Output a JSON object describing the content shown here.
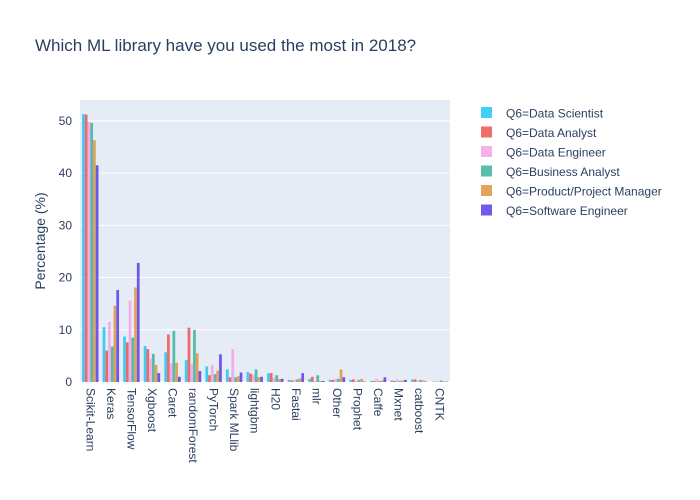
{
  "chart_data": {
    "type": "bar",
    "title": "Which ML library have you used the most in 2018?",
    "xlabel": "",
    "ylabel": "Percentage (%)",
    "ylim": [
      0,
      54
    ],
    "yticks": [
      0,
      10,
      20,
      30,
      40,
      50
    ],
    "grid": true,
    "legend_position": "right",
    "categories": [
      "Scikit-Learn",
      "Keras",
      "TensorFlow",
      "Xgboost",
      "Caret",
      "randomForest",
      "PyTorch",
      "Spark MLlib",
      "lightgbm",
      "H20",
      "Fastai",
      "mlr",
      "Other",
      "Prophet",
      "Caffe",
      "Mxnet",
      "catboost",
      "CNTK"
    ],
    "series": [
      {
        "name": "Q6=Data Scientist",
        "color": "#22c6f2",
        "values": [
          51.3,
          10.5,
          8.7,
          6.9,
          5.7,
          4.2,
          3.0,
          2.4,
          1.9,
          1.7,
          0.4,
          0.6,
          0.4,
          0.4,
          0.2,
          0.3,
          0.5,
          0.1
        ]
      },
      {
        "name": "Q6=Data Analyst",
        "color": "#ef5350",
        "values": [
          51.2,
          6.0,
          7.6,
          6.3,
          9.1,
          10.4,
          1.3,
          0.9,
          1.6,
          1.7,
          0.3,
          1.0,
          0.4,
          0.5,
          0.2,
          0.2,
          0.5,
          0.1
        ]
      },
      {
        "name": "Q6=Data Engineer",
        "color": "#f4a3e8",
        "values": [
          49.8,
          11.5,
          15.6,
          4.5,
          3.6,
          3.4,
          3.2,
          6.3,
          1.4,
          0.8,
          0.4,
          0.2,
          0.6,
          0.2,
          0.6,
          0.5,
          0.3,
          0.1
        ]
      },
      {
        "name": "Q6=Business Analyst",
        "color": "#3db39b",
        "values": [
          49.6,
          6.8,
          8.5,
          5.4,
          9.8,
          10.0,
          1.5,
          0.9,
          2.4,
          1.3,
          0.5,
          1.3,
          0.6,
          0.4,
          0.2,
          0.2,
          0.4,
          0.3
        ]
      },
      {
        "name": "Q6=Product/Project Manager",
        "color": "#e0943c",
        "values": [
          46.3,
          14.6,
          18.1,
          3.3,
          3.7,
          5.5,
          2.2,
          1.1,
          0.9,
          0.6,
          0.7,
          0.2,
          2.4,
          0.6,
          0.3,
          0.3,
          0.3,
          0.1
        ]
      },
      {
        "name": "Q6=Software Engineer",
        "color": "#5b3bea",
        "values": [
          41.5,
          17.6,
          22.8,
          1.7,
          1.0,
          2.1,
          5.3,
          1.8,
          1.0,
          0.6,
          1.7,
          0.2,
          0.9,
          0.1,
          0.9,
          0.4,
          0.1,
          0.1
        ]
      }
    ]
  }
}
